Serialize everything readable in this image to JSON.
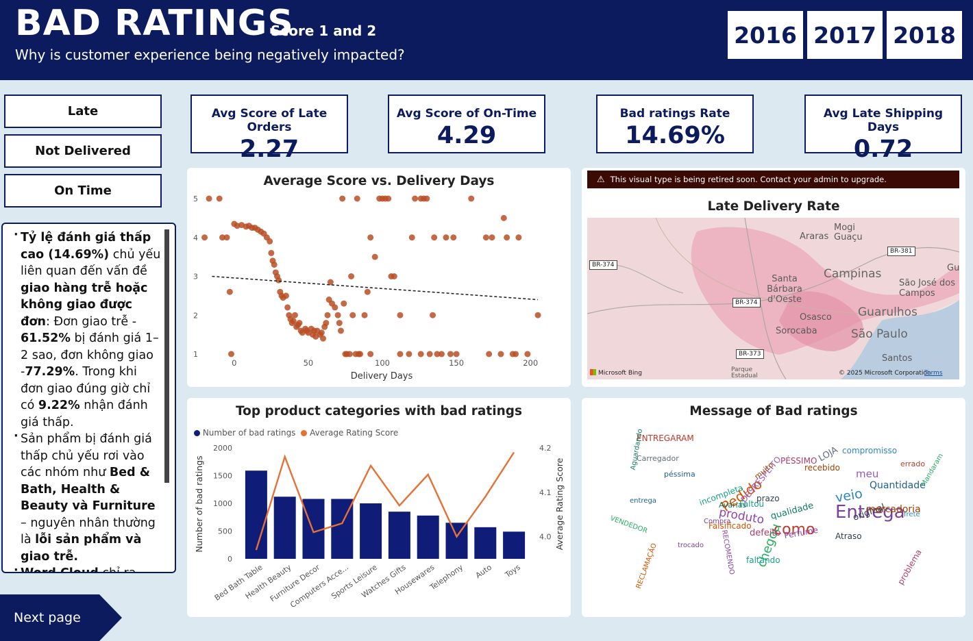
{
  "header": {
    "title": "BAD RATINGS",
    "subtitle": "Score 1 and 2",
    "question": "Why is customer experience being negatively impacted?",
    "years": [
      "2016",
      "2017",
      "2018"
    ]
  },
  "filters": [
    "Late",
    "Not Delivered",
    "On Time"
  ],
  "kpis": [
    {
      "label": "Avg Score of Late Orders",
      "value": "2.27"
    },
    {
      "label": "Avg Score of On-Time",
      "value": "4.29"
    },
    {
      "label": "Bad ratings Rate",
      "value": "14.69%"
    },
    {
      "label": "Avg Late Shipping Days",
      "value": "0.72"
    }
  ],
  "notes": {
    "p1_b1": "Tỷ lệ đánh giá thấp cao (14.69%)",
    "p1_t1": " chủ yếu liên quan đến vấn đề ",
    "p1_b2": "giao hàng trễ hoặc không giao được đơn",
    "p1_t2": ": Đơn giao trễ - ",
    "p1_b3": "61.52%",
    "p1_t3": " bị đánh giá 1–2 sao, đơn không giao -",
    "p1_b4": "77.29%",
    "p1_t4": ". Trong khi đơn giao đúng giờ chỉ có ",
    "p1_b5": "9.22%",
    "p1_t5": " nhận đánh giá thấp.",
    "p2_t1": "Sản phẩm bị đánh giá thấp chủ yếu rơi vào các nhóm như ",
    "p2_b1": "Bed & Bath, Health & Beauty và Furniture",
    "p2_t2": " – nguyên nhân thường là ",
    "p2_b2": "lỗi sản phẩm và giao trễ.",
    "p3_b1": "Word Cloud",
    "p3_t1": " chỉ ra nguyên nhân phổ biến"
  },
  "next_page": "Next page",
  "scatter": {
    "title": "Average Score vs. Delivery Days",
    "xlabel": "Delivery Days"
  },
  "map": {
    "warning": "This visual type is being retired soon. Contact your admin to upgrade.",
    "title": "Late Delivery Rate",
    "cities": [
      "Araras",
      "Mogi Guaçu",
      "Campinas",
      "Santa Bárbara d'Oeste",
      "São José dos Campos",
      "Osasco",
      "Guarulhos",
      "Sorocaba",
      "São Paulo",
      "Santos",
      "Gua",
      "Parque Estadual"
    ],
    "roads": [
      "BR-374",
      "BR-381",
      "BR-374",
      "BR-373"
    ],
    "bing": "Microsoft Bing",
    "copyright": "© 2025 Microsoft Corporation",
    "terms": "Terms"
  },
  "combo": {
    "title": "Top product categories with bad ratings",
    "legend": [
      "Number of bad ratings",
      "Average Rating Score"
    ],
    "ylabel_left": "Number of bad ratings",
    "ylabel_right": "Average Rating Score"
  },
  "wordcloud": {
    "title": "Message of Bad ratings",
    "words": [
      "Entrega",
      "como",
      "veio",
      "chegou",
      "Pedido",
      "produto",
      "faltando",
      "PÉSSIMO",
      "Atraso",
      "recebido",
      "Quantidade",
      "qualidade",
      "meu",
      "LOJA",
      "Compra",
      "ENTREGARAM",
      "compromisso",
      "VENDEDOR",
      "RECLAMAÇÃO",
      "RECOMENDO",
      "incompleta",
      "problema",
      "original",
      "mercadoria",
      "péssima",
      "Aguardando",
      "DESRESPEITO",
      "Carregador",
      "trocado",
      "errado",
      "frete",
      "Mandaram",
      "Falsificado",
      "Perfume",
      "Faltou",
      "defeito",
      "prazo",
      "muito",
      "entrega",
      "Avarias"
    ]
  },
  "chart_data": [
    {
      "type": "scatter",
      "title": "Average Score vs. Delivery Days",
      "xlabel": "Delivery Days",
      "ylabel": "",
      "xlim": [
        -5,
        205
      ],
      "ylim": [
        1,
        5
      ],
      "xticks": [
        0,
        50,
        100,
        150,
        200
      ],
      "yticks": [
        1,
        2,
        3,
        4,
        5
      ],
      "trendline": {
        "x": [
          -15,
          205
        ],
        "y": [
          3.0,
          2.4
        ]
      },
      "points": [
        [
          -17,
          5
        ],
        [
          -10,
          5
        ],
        [
          -20,
          4
        ],
        [
          -8,
          4
        ],
        [
          -5,
          4
        ],
        [
          -3,
          2.6
        ],
        [
          -2,
          1
        ],
        [
          0,
          4.35
        ],
        [
          2,
          4.3
        ],
        [
          5,
          4.32
        ],
        [
          8,
          4.28
        ],
        [
          10,
          4.3
        ],
        [
          12,
          4.25
        ],
        [
          14,
          4.25
        ],
        [
          16,
          4.2
        ],
        [
          18,
          4.15
        ],
        [
          20,
          4.1
        ],
        [
          22,
          4.0
        ],
        [
          24,
          3.9
        ],
        [
          25,
          3.6
        ],
        [
          26,
          3.4
        ],
        [
          27,
          3.3
        ],
        [
          28,
          3.1
        ],
        [
          29,
          3.0
        ],
        [
          30,
          2.9
        ],
        [
          31,
          2.6
        ],
        [
          32,
          2.5
        ],
        [
          33,
          2.45
        ],
        [
          35,
          2.5
        ],
        [
          36,
          2.2
        ],
        [
          37,
          2.0
        ],
        [
          38,
          1.9
        ],
        [
          39,
          1.8
        ],
        [
          40,
          1.85
        ],
        [
          41,
          2.0
        ],
        [
          42,
          1.7
        ],
        [
          43,
          1.75
        ],
        [
          44,
          1.8
        ],
        [
          45,
          1.6
        ],
        [
          46,
          1.55
        ],
        [
          48,
          1.65
        ],
        [
          49,
          1.6
        ],
        [
          50,
          1.55
        ],
        [
          52,
          1.65
        ],
        [
          53,
          1.5
        ],
        [
          54,
          1.6
        ],
        [
          55,
          1.45
        ],
        [
          56,
          1.6
        ],
        [
          58,
          1.5
        ],
        [
          59,
          1.55
        ],
        [
          60,
          1.4
        ],
        [
          61,
          1.7
        ],
        [
          62,
          1.8
        ],
        [
          63,
          2.0
        ],
        [
          64,
          2.4
        ],
        [
          65,
          2.85
        ],
        [
          66,
          2.3
        ],
        [
          68,
          2.2
        ],
        [
          70,
          2.0
        ],
        [
          71,
          1.8
        ],
        [
          72,
          1.6
        ],
        [
          74,
          2.3
        ],
        [
          75,
          1.0
        ],
        [
          76,
          1.0
        ],
        [
          78,
          1.0
        ],
        [
          79,
          3.0
        ],
        [
          80,
          2.0
        ],
        [
          82,
          1.0
        ],
        [
          84,
          1.0
        ],
        [
          85,
          1.0
        ],
        [
          88,
          2.0
        ],
        [
          90,
          2.6
        ],
        [
          92,
          1.0
        ],
        [
          73,
          5
        ],
        [
          83,
          5
        ],
        [
          92,
          4
        ],
        [
          95,
          3.5
        ],
        [
          98,
          5
        ],
        [
          100,
          5
        ],
        [
          102,
          5
        ],
        [
          104,
          5
        ],
        [
          106,
          3.0
        ],
        [
          108,
          3.0
        ],
        [
          112,
          2.0
        ],
        [
          112,
          1.0
        ],
        [
          118,
          1.0
        ],
        [
          120,
          4.0
        ],
        [
          122,
          5
        ],
        [
          126,
          1.0
        ],
        [
          126,
          5
        ],
        [
          128,
          5
        ],
        [
          130,
          5
        ],
        [
          132,
          1.0
        ],
        [
          134,
          2.0
        ],
        [
          135,
          4.0
        ],
        [
          137,
          1.0
        ],
        [
          140,
          1.0
        ],
        [
          143,
          4.0
        ],
        [
          146,
          1.0
        ],
        [
          148,
          4.0
        ],
        [
          150,
          1.0
        ],
        [
          160,
          5
        ],
        [
          170,
          4.0
        ],
        [
          172,
          1.0
        ],
        [
          174,
          4.0
        ],
        [
          180,
          1.0
        ],
        [
          182,
          4.5
        ],
        [
          184,
          4.0
        ],
        [
          188,
          1.0
        ],
        [
          190,
          1.0
        ],
        [
          192,
          4.0
        ],
        [
          198,
          1.0
        ],
        [
          205,
          2.0
        ]
      ]
    },
    {
      "type": "bar",
      "title": "Top product categories with bad ratings",
      "categories": [
        "Bed Bath Table",
        "Health Beauty",
        "Furniture Decor",
        "Computers Acce...",
        "Sports Leisure",
        "Watches Gifts",
        "Housewares",
        "Telephony",
        "Auto",
        "Toys"
      ],
      "series": [
        {
          "name": "Number of bad ratings",
          "type": "bar",
          "color": "#0f1d78",
          "values": [
            1590,
            1120,
            1080,
            1080,
            1000,
            850,
            780,
            650,
            570,
            490
          ]
        },
        {
          "name": "Average Rating Score",
          "type": "line",
          "color": "#e57136",
          "values": [
            3.97,
            4.18,
            4.01,
            4.03,
            4.16,
            4.07,
            4.14,
            4.0,
            4.09,
            4.19
          ]
        }
      ],
      "ylabel": "Number of bad ratings",
      "ylim": [
        0,
        2000
      ],
      "yticks": [
        0,
        500,
        1000,
        1500,
        2000
      ],
      "ylabel_right": "Average Rating Score",
      "ylim_right": [
        3.95,
        4.2
      ],
      "yticks_right": [
        "4.0",
        "4.1",
        "4.2"
      ]
    }
  ]
}
